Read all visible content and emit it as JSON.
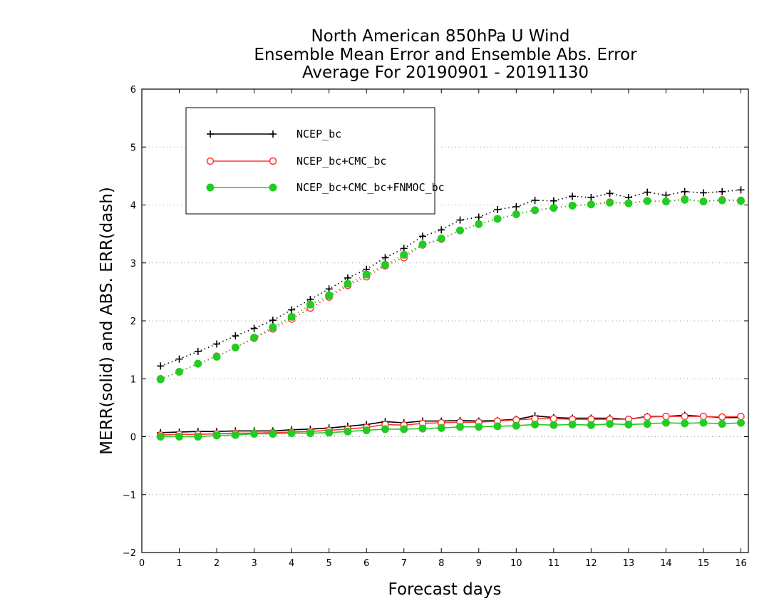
{
  "chart_data": {
    "type": "line",
    "title_lines": [
      "North American 850hPa U Wind",
      "Ensemble Mean Error and Ensemble Abs. Error",
      "Average For 20190901 - 20191130"
    ],
    "xlabel": "Forecast days",
    "ylabel": "MERR(solid) and ABS. ERR(dash)",
    "xlim": [
      0,
      16.2
    ],
    "ylim": [
      -2,
      6
    ],
    "xticks": [
      "0",
      "1",
      "2",
      "3",
      "4",
      "5",
      "6",
      "7",
      "8",
      "9",
      "10",
      "11",
      "12",
      "13",
      "14",
      "15",
      "16"
    ],
    "yticks": [
      "-2",
      "-1",
      "0",
      "1",
      "2",
      "3",
      "4",
      "5",
      "6"
    ],
    "grid": "horizontal dotted",
    "legend_position": "top-left",
    "x": [
      0.5,
      1,
      1.5,
      2,
      2.5,
      3,
      3.5,
      4,
      4.5,
      5,
      5.5,
      6,
      6.5,
      7,
      7.5,
      8,
      8.5,
      9,
      9.5,
      10,
      10.5,
      11,
      11.5,
      12,
      12.5,
      13,
      13.5,
      14,
      14.5,
      15,
      15.5,
      16
    ],
    "series": [
      {
        "name": "NCEP_bc",
        "color": "#000000",
        "marker": "plus",
        "abs_err": [
          1.22,
          1.34,
          1.47,
          1.6,
          1.74,
          1.87,
          2.01,
          2.19,
          2.37,
          2.55,
          2.74,
          2.89,
          3.09,
          3.25,
          3.46,
          3.57,
          3.74,
          3.79,
          3.92,
          3.97,
          4.08,
          4.07,
          4.15,
          4.13,
          4.2,
          4.13,
          4.22,
          4.17,
          4.23,
          4.21,
          4.23,
          4.26
        ],
        "mean_err": [
          0.07,
          0.08,
          0.09,
          0.09,
          0.1,
          0.1,
          0.1,
          0.12,
          0.13,
          0.15,
          0.18,
          0.21,
          0.26,
          0.24,
          0.27,
          0.27,
          0.28,
          0.27,
          0.28,
          0.3,
          0.36,
          0.33,
          0.32,
          0.32,
          0.32,
          0.3,
          0.35,
          0.35,
          0.37,
          0.35,
          0.33,
          0.33
        ]
      },
      {
        "name": "NCEP_bc+CMC_bc",
        "color": "#ff3333",
        "marker": "open-circle",
        "abs_err": [
          1.0,
          1.12,
          1.26,
          1.39,
          1.54,
          1.7,
          1.86,
          2.03,
          2.22,
          2.41,
          2.61,
          2.76,
          2.95,
          3.09,
          3.31,
          3.41,
          3.56,
          3.67,
          3.76,
          3.84,
          3.91,
          3.95,
          3.99,
          4.01,
          4.05,
          4.03,
          4.07,
          4.06,
          4.1,
          4.06,
          4.09,
          4.08
        ],
        "mean_err": [
          0.03,
          0.04,
          0.04,
          0.05,
          0.06,
          0.06,
          0.07,
          0.08,
          0.09,
          0.11,
          0.13,
          0.16,
          0.21,
          0.2,
          0.23,
          0.24,
          0.25,
          0.25,
          0.27,
          0.29,
          0.31,
          0.31,
          0.3,
          0.3,
          0.3,
          0.3,
          0.34,
          0.35,
          0.35,
          0.35,
          0.34,
          0.35
        ]
      },
      {
        "name": "NCEP_bc+CMC_bc+FNMOC_bc",
        "color": "#22cc22",
        "marker": "filled-circle",
        "abs_err": [
          0.99,
          1.12,
          1.26,
          1.38,
          1.54,
          1.71,
          1.89,
          2.07,
          2.28,
          2.44,
          2.64,
          2.8,
          2.97,
          3.14,
          3.32,
          3.42,
          3.56,
          3.67,
          3.76,
          3.84,
          3.91,
          3.95,
          3.99,
          4.01,
          4.04,
          4.03,
          4.07,
          4.06,
          4.09,
          4.06,
          4.08,
          4.07
        ],
        "mean_err": [
          0.0,
          0.0,
          0.0,
          0.02,
          0.03,
          0.05,
          0.05,
          0.06,
          0.06,
          0.07,
          0.09,
          0.11,
          0.13,
          0.13,
          0.14,
          0.15,
          0.17,
          0.17,
          0.18,
          0.19,
          0.21,
          0.2,
          0.21,
          0.2,
          0.22,
          0.21,
          0.22,
          0.24,
          0.23,
          0.24,
          0.22,
          0.24
        ]
      }
    ]
  }
}
